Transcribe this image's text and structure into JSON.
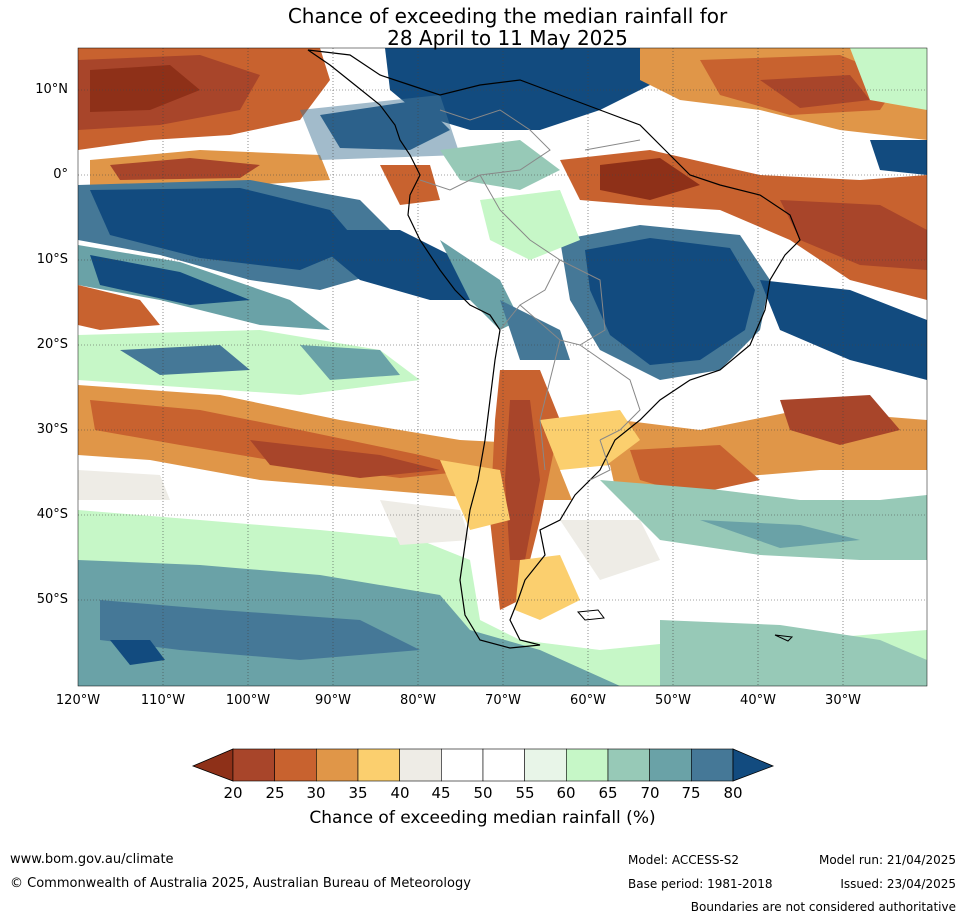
{
  "title": {
    "line1": "Chance of exceeding the median rainfall for",
    "line2": "28 April to 11 May 2025"
  },
  "latitude_labels": [
    "10°N",
    "0°",
    "10°S",
    "20°S",
    "30°S",
    "40°S",
    "50°S"
  ],
  "longitude_labels": [
    "120°W",
    "110°W",
    "100°W",
    "90°W",
    "80°W",
    "70°W",
    "60°W",
    "50°W",
    "40°W",
    "30°W"
  ],
  "colorbar": {
    "ticks": [
      "20",
      "25",
      "30",
      "35",
      "40",
      "45",
      "50",
      "55",
      "60",
      "65",
      "70",
      "75",
      "80"
    ],
    "colors": [
      "#8e3018",
      "#a8452a",
      "#c8622f",
      "#e09648",
      "#fbcf6e",
      "#eeece6",
      "#ffffff",
      "#ffffff",
      "#e8f5e8",
      "#c6f7c7",
      "#97c9b7",
      "#6aa2a7",
      "#457897",
      "#124b7f"
    ],
    "label": "Chance of exceeding median rainfall (%)"
  },
  "footer": {
    "website": "www.bom.gov.au/climate",
    "copyright": "© Commonwealth of Australia 2025, Australian Bureau of Meteorology",
    "model": "Model: ACCESS-S2",
    "base_period": "Base period: 1981-2018",
    "model_run": "Model run: 21/04/2025",
    "issued": "Issued: 23/04/2025",
    "disclaimer": "Boundaries are not considered authoritative"
  }
}
